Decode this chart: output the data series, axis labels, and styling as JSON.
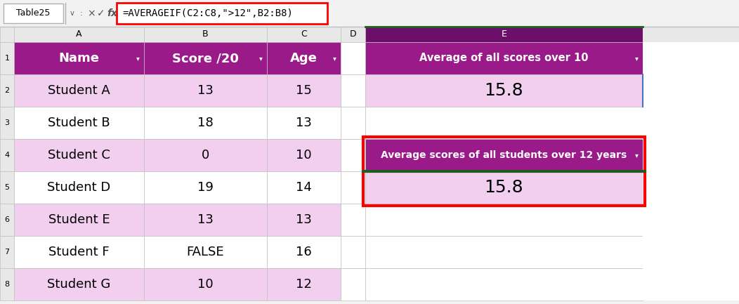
{
  "formula_bar_text": "=AVERAGEIF(C2:C8,\">12\",B2:B8)",
  "name_box": "Table25",
  "col_headers": [
    "A",
    "B",
    "C",
    "D",
    "E"
  ],
  "table_headers": [
    "Name",
    "Score /20",
    "Age"
  ],
  "table_data": [
    [
      "Student A",
      "13",
      "15"
    ],
    [
      "Student B",
      "18",
      "13"
    ],
    [
      "Student C",
      "0",
      "10"
    ],
    [
      "Student D",
      "19",
      "14"
    ],
    [
      "Student E",
      "13",
      "13"
    ],
    [
      "Student F",
      "FALSE",
      "16"
    ],
    [
      "Student G",
      "10",
      "12"
    ]
  ],
  "e1_text": "Average of all scores over 10",
  "e2_value": "15.8",
  "e4_text": "Average scores of all students over 12 years",
  "e5_value": "15.8",
  "header_bg": "#9B1A8A",
  "header_text_color": "#FFFFFF",
  "pink_row_bg": "#F2CEEF",
  "white_row_bg": "#FFFFFF",
  "e_header_bg": "#9B1A8A",
  "e_value_bg": "#F2CEEF",
  "e_text_color": "#FFFFFF",
  "e_value_color": "#000000",
  "grid_color": "#C0C0C0",
  "col_header_bg": "#E8E8E8",
  "e_col_header_bg": "#6B0F6B",
  "red_border_color": "#FF0000",
  "dark_green_border": "#1F5C1F",
  "fig_width": 10.52,
  "fig_height": 4.33
}
